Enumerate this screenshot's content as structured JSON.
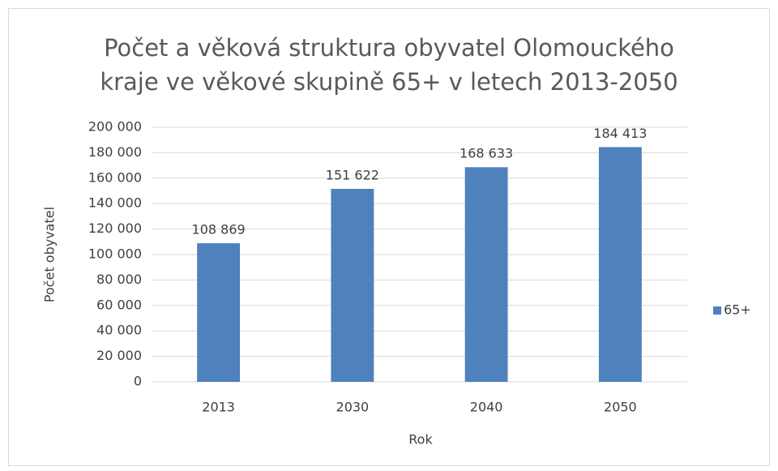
{
  "chart_data": {
    "type": "bar",
    "title": "Počet a věková struktura obyvatel Olomouckého kraje ve věkové skupině 65+ v letech 2013-2050",
    "x_label": "Rok",
    "y_label": "Počet obyvatel",
    "categories": [
      "2013",
      "2030",
      "2040",
      "2050"
    ],
    "series": [
      {
        "name": "65+",
        "color": "#4f81bd",
        "values": [
          108869,
          151622,
          168633,
          184413
        ],
        "value_labels": [
          "108 869",
          "151 622",
          "168 633",
          "184 413"
        ]
      }
    ],
    "ylim": [
      0,
      200000
    ],
    "yticks": [
      0,
      {
        "value": 20000,
        "label": "20 000"
      },
      {
        "value": 40000,
        "label": "40 000"
      },
      {
        "value": 60000,
        "label": "60 000"
      },
      {
        "value": 80000,
        "label": "80 000"
      },
      {
        "value": 100000,
        "label": "100 000"
      },
      {
        "value": 120000,
        "label": "120 000"
      },
      {
        "value": 140000,
        "label": "140 000"
      },
      {
        "value": 160000,
        "label": "160 000"
      },
      {
        "value": 180000,
        "label": "180 000"
      },
      {
        "value": 200000,
        "label": "200 000"
      }
    ],
    "grid": true,
    "legend": "right"
  }
}
